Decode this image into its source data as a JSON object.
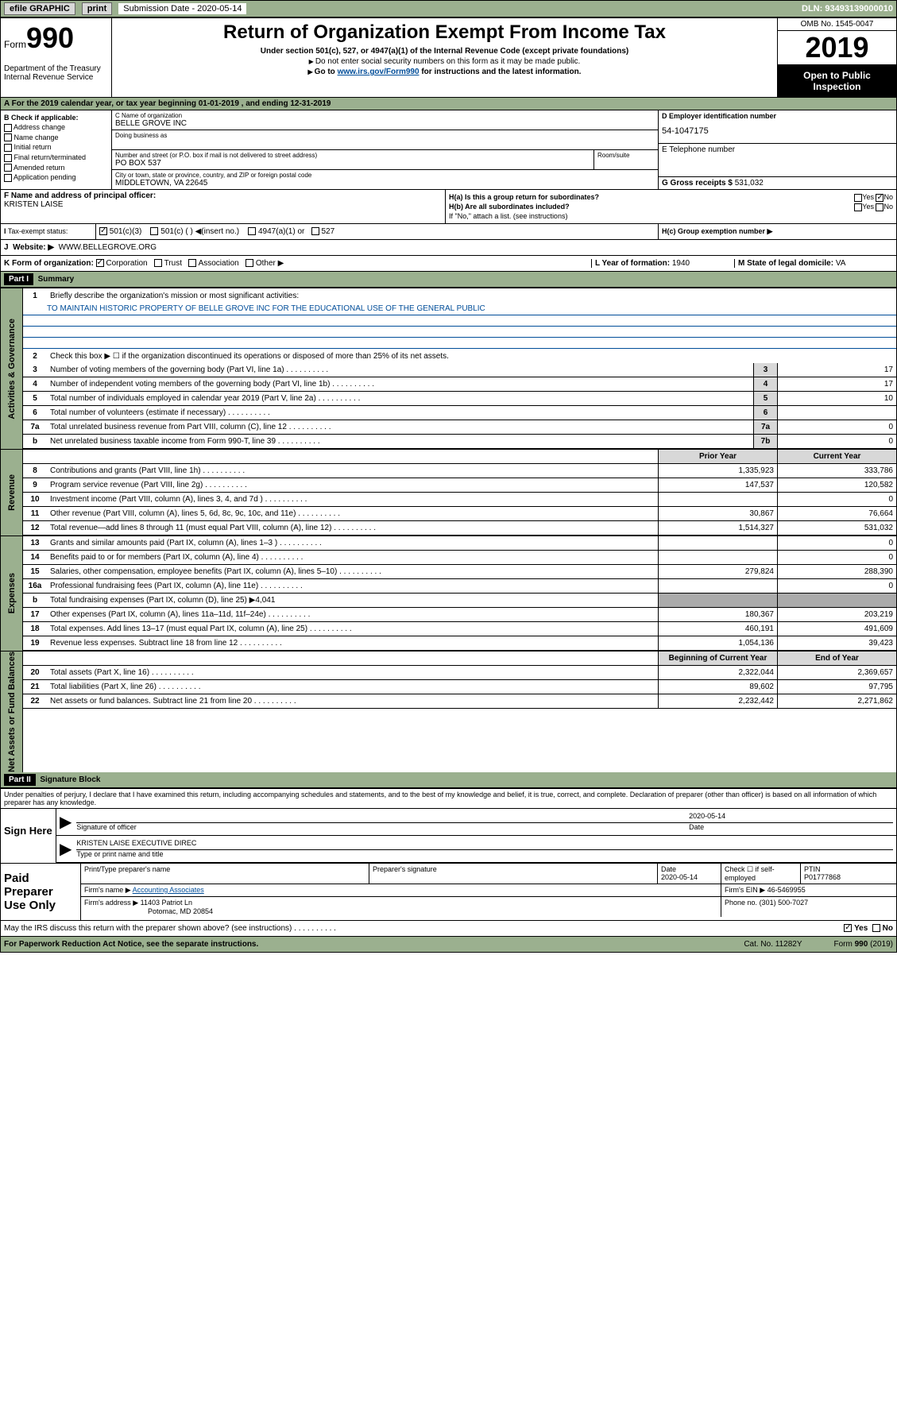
{
  "topbar": {
    "efile": "efile GRAPHIC",
    "print": "print",
    "sub_label": "Submission Date - 2020-05-14",
    "dln": "DLN: 93493139000010"
  },
  "header": {
    "form_prefix": "Form",
    "form_num": "990",
    "dept": "Department of the Treasury\nInternal Revenue Service",
    "title": "Return of Organization Exempt From Income Tax",
    "subtitle": "Under section 501(c), 527, or 4947(a)(1) of the Internal Revenue Code (except private foundations)",
    "note1": "Do not enter social security numbers on this form as it may be made public.",
    "note2_a": "Go to ",
    "note2_link": "www.irs.gov/Form990",
    "note2_b": " for instructions and the latest information.",
    "omb": "OMB No. 1545-0047",
    "year": "2019",
    "inspection": "Open to Public Inspection"
  },
  "a_row": "For the 2019 calendar year, or tax year beginning 01-01-2019   , and ending 12-31-2019",
  "b": {
    "label": "B Check if applicable:",
    "opts": [
      "Address change",
      "Name change",
      "Initial return",
      "Final return/terminated",
      "Amended return",
      "Application pending"
    ]
  },
  "c": {
    "name_lbl": "C Name of organization",
    "name": "BELLE GROVE INC",
    "dba_lbl": "Doing business as",
    "addr_lbl": "Number and street (or P.O. box if mail is not delivered to street address)",
    "room_lbl": "Room/suite",
    "addr": "PO BOX 537",
    "city_lbl": "City or town, state or province, country, and ZIP or foreign postal code",
    "city": "MIDDLETOWN, VA  22645"
  },
  "d": {
    "lbl": "D Employer identification number",
    "val": "54-1047175"
  },
  "e": {
    "lbl": "E Telephone number",
    "val": ""
  },
  "g": {
    "lbl": "G Gross receipts $",
    "val": "531,032"
  },
  "f": {
    "lbl": "F  Name and address of principal officer:",
    "val": "KRISTEN LAISE"
  },
  "h": {
    "a": "H(a)  Is this a group return for subordinates?",
    "b": "H(b)  Are all subordinates included?",
    "b_note": "If \"No,\" attach a list. (see instructions)",
    "c": "H(c)  Group exemption number ▶",
    "yes": "Yes",
    "no": "No"
  },
  "i": {
    "lbl": "Tax-exempt status:",
    "opts": [
      "501(c)(3)",
      "501(c) (  ) ◀(insert no.)",
      "4947(a)(1) or",
      "527"
    ]
  },
  "j": {
    "lbl": "Website: ▶",
    "val": "WWW.BELLEGROVE.ORG"
  },
  "k": {
    "lbl": "K Form of organization:",
    "opts": [
      "Corporation",
      "Trust",
      "Association",
      "Other ▶"
    ]
  },
  "l": {
    "lbl": "L Year of formation:",
    "val": "1940"
  },
  "m": {
    "lbl": "M State of legal domicile:",
    "val": "VA"
  },
  "part1": {
    "tag": "Part I",
    "title": "Summary"
  },
  "summary": {
    "q1": "Briefly describe the organization's mission or most significant activities:",
    "mission": "TO MAINTAIN HISTORIC PROPERTY OF BELLE GROVE INC FOR THE EDUCATIONAL USE OF THE GENERAL PUBLIC",
    "q2": "Check this box ▶ ☐  if the organization discontinued its operations or disposed of more than 25% of its net assets.",
    "lines_gov": [
      {
        "n": "3",
        "t": "Number of voting members of the governing body (Part VI, line 1a)",
        "box": "3",
        "v": "17"
      },
      {
        "n": "4",
        "t": "Number of independent voting members of the governing body (Part VI, line 1b)",
        "box": "4",
        "v": "17"
      },
      {
        "n": "5",
        "t": "Total number of individuals employed in calendar year 2019 (Part V, line 2a)",
        "box": "5",
        "v": "10"
      },
      {
        "n": "6",
        "t": "Total number of volunteers (estimate if necessary)",
        "box": "6",
        "v": ""
      },
      {
        "n": "7a",
        "t": "Total unrelated business revenue from Part VIII, column (C), line 12",
        "box": "7a",
        "v": "0"
      },
      {
        "n": "b",
        "t": "Net unrelated business taxable income from Form 990-T, line 39",
        "box": "7b",
        "v": "0"
      }
    ],
    "col_prior": "Prior Year",
    "col_current": "Current Year",
    "lines_rev": [
      {
        "n": "8",
        "t": "Contributions and grants (Part VIII, line 1h)",
        "p": "1,335,923",
        "c": "333,786"
      },
      {
        "n": "9",
        "t": "Program service revenue (Part VIII, line 2g)",
        "p": "147,537",
        "c": "120,582"
      },
      {
        "n": "10",
        "t": "Investment income (Part VIII, column (A), lines 3, 4, and 7d )",
        "p": "",
        "c": "0"
      },
      {
        "n": "11",
        "t": "Other revenue (Part VIII, column (A), lines 5, 6d, 8c, 9c, 10c, and 11e)",
        "p": "30,867",
        "c": "76,664"
      },
      {
        "n": "12",
        "t": "Total revenue—add lines 8 through 11 (must equal Part VIII, column (A), line 12)",
        "p": "1,514,327",
        "c": "531,032"
      }
    ],
    "lines_exp": [
      {
        "n": "13",
        "t": "Grants and similar amounts paid (Part IX, column (A), lines 1–3 )",
        "p": "",
        "c": "0"
      },
      {
        "n": "14",
        "t": "Benefits paid to or for members (Part IX, column (A), line 4)",
        "p": "",
        "c": "0"
      },
      {
        "n": "15",
        "t": "Salaries, other compensation, employee benefits (Part IX, column (A), lines 5–10)",
        "p": "279,824",
        "c": "288,390"
      },
      {
        "n": "16a",
        "t": "Professional fundraising fees (Part IX, column (A), line 11e)",
        "p": "",
        "c": "0"
      },
      {
        "n": "b",
        "t": "Total fundraising expenses (Part IX, column (D), line 25) ▶4,041",
        "p": "—",
        "c": "—"
      },
      {
        "n": "17",
        "t": "Other expenses (Part IX, column (A), lines 11a–11d, 11f–24e)",
        "p": "180,367",
        "c": "203,219"
      },
      {
        "n": "18",
        "t": "Total expenses. Add lines 13–17 (must equal Part IX, column (A), line 25)",
        "p": "460,191",
        "c": "491,609"
      },
      {
        "n": "19",
        "t": "Revenue less expenses. Subtract line 18 from line 12",
        "p": "1,054,136",
        "c": "39,423"
      }
    ],
    "col_begin": "Beginning of Current Year",
    "col_end": "End of Year",
    "lines_net": [
      {
        "n": "20",
        "t": "Total assets (Part X, line 16)",
        "p": "2,322,044",
        "c": "2,369,657"
      },
      {
        "n": "21",
        "t": "Total liabilities (Part X, line 26)",
        "p": "89,602",
        "c": "97,795"
      },
      {
        "n": "22",
        "t": "Net assets or fund balances. Subtract line 21 from line 20",
        "p": "2,232,442",
        "c": "2,271,862"
      }
    ]
  },
  "sides": {
    "gov": "Activities & Governance",
    "rev": "Revenue",
    "exp": "Expenses",
    "net": "Net Assets or Fund Balances"
  },
  "part2": {
    "tag": "Part II",
    "title": "Signature Block"
  },
  "penalty": "Under penalties of perjury, I declare that I have examined this return, including accompanying schedules and statements, and to the best of my knowledge and belief, it is true, correct, and complete. Declaration of preparer (other than officer) is based on all information of which preparer has any knowledge.",
  "sign": {
    "here": "Sign Here",
    "sig_lbl": "Signature of officer",
    "date_lbl": "Date",
    "date": "2020-05-14",
    "name": "KRISTEN LAISE EXECUTIVE DIREC",
    "name_lbl": "Type or print name and title"
  },
  "paid": {
    "here": "Paid Preparer Use Only",
    "h1": "Print/Type preparer's name",
    "h2": "Preparer's signature",
    "h3": "Date",
    "date": "2020-05-14",
    "check_lbl": "Check ☐ if self-employed",
    "ptin_lbl": "PTIN",
    "ptin": "P01777868",
    "firm_name_lbl": "Firm's name    ▶",
    "firm_name": "Accounting Associates",
    "firm_ein_lbl": "Firm's EIN ▶",
    "firm_ein": "46-5469955",
    "firm_addr_lbl": "Firm's address ▶",
    "firm_addr": "11403 Patriot Ln",
    "firm_city": "Potomac, MD  20854",
    "phone_lbl": "Phone no.",
    "phone": "(301) 500-7027"
  },
  "footer": {
    "discuss": "May the IRS discuss this return with the preparer shown above? (see instructions)",
    "yes": "Yes",
    "no": "No",
    "pra": "For Paperwork Reduction Act Notice, see the separate instructions.",
    "cat": "Cat. No. 11282Y",
    "form": "Form 990 (2019)"
  }
}
